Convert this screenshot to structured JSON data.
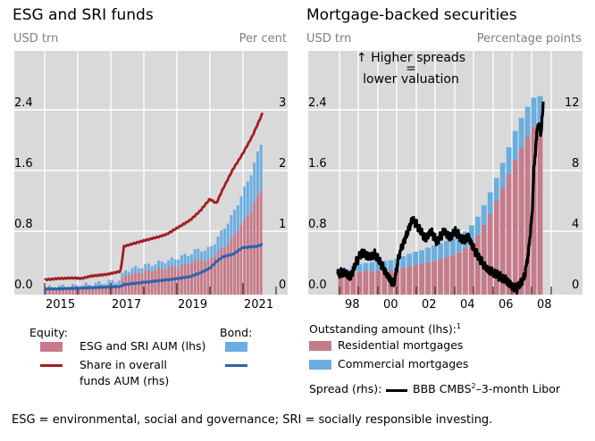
{
  "panels": [
    {
      "title": "ESG and SRI funds",
      "left_unit": "USD trn",
      "right_unit": "Per cent"
    },
    {
      "title": "Mortgage-backed securities",
      "left_unit": "USD trn",
      "right_unit": "Percentage points",
      "annotation_line1": "↑ Higher spreads",
      "annotation_line2": "=",
      "annotation_line3": "lower valuation"
    }
  ],
  "legend_left": {
    "equity_heading": "Equity:",
    "bond_heading": "Bond:",
    "aum_label": "ESG and SRI AUM (lhs)",
    "share_label_1": "Share in overall",
    "share_label_2": "funds AUM (rhs)"
  },
  "legend_right": {
    "outstanding_heading": "Outstanding amount (lhs):",
    "outstanding_sup": "1",
    "residential_label": "Residential mortgages",
    "commercial_label": "Commercial mortgages",
    "spread_heading": "Spread (rhs):",
    "spread_label_a": "BBB CMBS",
    "spread_sup": "2",
    "spread_label_b": "–3-month Libor"
  },
  "footnote": "ESG = environmental, social and governance; SRI = socially responsible investing.",
  "colors": {
    "plot_bg": "#d9d9d9",
    "equity_bar": "#c67b8b",
    "bond_bar": "#6aaee0",
    "equity_line": "#a31d23",
    "bond_line": "#2f62ab",
    "spread_line": "#000000",
    "unit_text": "#7f7f7f"
  },
  "chart_data": [
    {
      "type": "bar",
      "title": "ESG and SRI funds",
      "ylabel_left": "USD trn",
      "ylabel_right": "Per cent",
      "ylim_left": [
        0,
        3.0
      ],
      "ylim_right": [
        0,
        3.75
      ],
      "yticks_left": [
        "0.0",
        "0.8",
        "1.6",
        "2.4"
      ],
      "yticks_right": [
        "0",
        "1",
        "2",
        "3"
      ],
      "xtick_labels": [
        "2015",
        "2017",
        "2019",
        "2021"
      ],
      "x_range": [
        2014.6,
        2021.2
      ],
      "grid": true,
      "legend_placement": "bottom",
      "series": [
        {
          "name": "Equity ESG and SRI AUM (lhs)",
          "kind": "stacked-bar",
          "x": [
            2014.6,
            2015.0,
            2015.5,
            2016.0,
            2016.5,
            2016.9,
            2017.0,
            2017.5,
            2018.0,
            2018.5,
            2019.0,
            2019.3,
            2019.5,
            2019.8,
            2020.0,
            2020.3,
            2020.5,
            2020.8,
            2021.0,
            2021.2
          ],
          "values": [
            0.03,
            0.04,
            0.05,
            0.06,
            0.08,
            0.1,
            0.22,
            0.26,
            0.3,
            0.33,
            0.38,
            0.44,
            0.4,
            0.5,
            0.58,
            0.72,
            0.86,
            1.04,
            1.22,
            1.4
          ]
        },
        {
          "name": "Bond ESG and SRI AUM (lhs)",
          "kind": "stacked-bar",
          "x": [
            2014.6,
            2015.0,
            2015.5,
            2016.0,
            2016.5,
            2016.9,
            2017.0,
            2017.5,
            2018.0,
            2018.5,
            2019.0,
            2019.3,
            2019.5,
            2019.8,
            2020.0,
            2020.3,
            2020.5,
            2020.8,
            2021.0,
            2021.2
          ],
          "values": [
            0.02,
            0.03,
            0.03,
            0.04,
            0.05,
            0.06,
            0.06,
            0.07,
            0.08,
            0.1,
            0.12,
            0.13,
            0.14,
            0.18,
            0.24,
            0.3,
            0.36,
            0.46,
            0.54,
            0.62
          ]
        },
        {
          "name": "Equity share in overall funds AUM (rhs)",
          "kind": "line",
          "x": [
            2014.6,
            2015.0,
            2015.5,
            2015.7,
            2016.0,
            2016.5,
            2016.9,
            2017.0,
            2017.5,
            2018.0,
            2018.3,
            2018.6,
            2019.0,
            2019.3,
            2019.6,
            2019.8,
            2020.0,
            2020.3,
            2020.6,
            2020.9,
            2021.2
          ],
          "values": [
            0.2,
            0.22,
            0.23,
            0.22,
            0.26,
            0.29,
            0.34,
            0.75,
            0.83,
            0.9,
            0.95,
            1.05,
            1.18,
            1.33,
            1.53,
            1.46,
            1.7,
            2.02,
            2.28,
            2.58,
            2.95
          ]
        },
        {
          "name": "Bond share in overall funds AUM (rhs)",
          "kind": "line",
          "x": [
            2014.6,
            2015.0,
            2015.5,
            2016.0,
            2016.5,
            2016.9,
            2017.0,
            2017.5,
            2018.0,
            2018.5,
            2019.0,
            2019.3,
            2019.6,
            2019.8,
            2020.0,
            2020.3,
            2020.6,
            2021.0,
            2021.2
          ],
          "values": [
            0.05,
            0.05,
            0.06,
            0.07,
            0.08,
            0.09,
            0.12,
            0.15,
            0.18,
            0.21,
            0.25,
            0.31,
            0.39,
            0.5,
            0.58,
            0.62,
            0.73,
            0.75,
            0.78
          ]
        }
      ]
    },
    {
      "type": "bar",
      "title": "Mortgage-backed securities",
      "ylabel_left": "USD trn",
      "ylabel_right": "Percentage points",
      "ylim_left": [
        0,
        3.0
      ],
      "ylim_right": [
        0,
        15
      ],
      "yticks_left": [
        "0.0",
        "0.8",
        "1.6",
        "2.4"
      ],
      "yticks_right": [
        "0",
        "4",
        "8",
        "12"
      ],
      "xtick_labels": [
        "98",
        "00",
        "02",
        "04",
        "06",
        "08"
      ],
      "x_range": [
        1996.5,
        2009.3
      ],
      "grid": true,
      "legend_placement": "bottom",
      "series": [
        {
          "name": "Residential mortgages (lhs)",
          "kind": "stacked-bar",
          "x": [
            1997.0,
            1997.5,
            1998.0,
            1998.5,
            1999.0,
            1999.5,
            2000.0,
            2000.5,
            2001.0,
            2001.5,
            2002.0,
            2002.5,
            2003.0,
            2003.5,
            2004.0,
            2004.5,
            2005.0,
            2005.5,
            2006.0,
            2006.5,
            2007.0,
            2007.5,
            2008.0
          ],
          "values": [
            0.18,
            0.22,
            0.26,
            0.28,
            0.28,
            0.28,
            0.28,
            0.32,
            0.35,
            0.37,
            0.4,
            0.43,
            0.47,
            0.52,
            0.6,
            0.75,
            0.95,
            1.2,
            1.46,
            1.74,
            1.98,
            2.18,
            2.25
          ]
        },
        {
          "name": "Commercial mortgages (lhs)",
          "kind": "stacked-bar",
          "x": [
            1997.0,
            1997.5,
            1998.0,
            1998.5,
            1999.0,
            1999.5,
            2000.0,
            2000.5,
            2001.0,
            2001.5,
            2002.0,
            2002.5,
            2003.0,
            2003.5,
            2004.0,
            2004.5,
            2005.0,
            2005.5,
            2006.0,
            2006.5,
            2007.0,
            2007.5,
            2008.0
          ],
          "values": [
            0.05,
            0.08,
            0.1,
            0.1,
            0.12,
            0.13,
            0.14,
            0.15,
            0.17,
            0.18,
            0.2,
            0.21,
            0.22,
            0.23,
            0.22,
            0.24,
            0.27,
            0.3,
            0.34,
            0.38,
            0.4,
            0.38,
            0.34
          ]
        },
        {
          "name": "Spread BBB CMBS–3-month Libor (rhs)",
          "kind": "line",
          "x": [
            1997.0,
            1997.3,
            1997.7,
            1998.0,
            1998.3,
            1998.7,
            1999.0,
            1999.3,
            1999.7,
            2000.0,
            2000.3,
            2000.7,
            2001.0,
            2001.3,
            2001.7,
            2002.0,
            2002.3,
            2002.7,
            2003.0,
            2003.3,
            2003.7,
            2004.0,
            2004.3,
            2004.7,
            2005.0,
            2005.3,
            2005.7,
            2006.0,
            2006.3,
            2006.6,
            2006.8,
            2007.0,
            2007.2,
            2007.4,
            2007.5,
            2007.7,
            2007.9,
            2008.0
          ],
          "values": [
            1.2,
            1.3,
            1.0,
            2.0,
            2.6,
            2.3,
            2.5,
            1.9,
            1.0,
            0.5,
            2.5,
            3.8,
            4.8,
            4.3,
            3.5,
            4.0,
            3.3,
            4.0,
            3.6,
            4.0,
            3.4,
            3.6,
            2.8,
            2.0,
            1.5,
            1.3,
            1.0,
            0.8,
            0.4,
            0.2,
            0.6,
            1.0,
            2.5,
            5.0,
            8.0,
            11.0,
            10.5,
            12.5
          ]
        }
      ]
    }
  ]
}
